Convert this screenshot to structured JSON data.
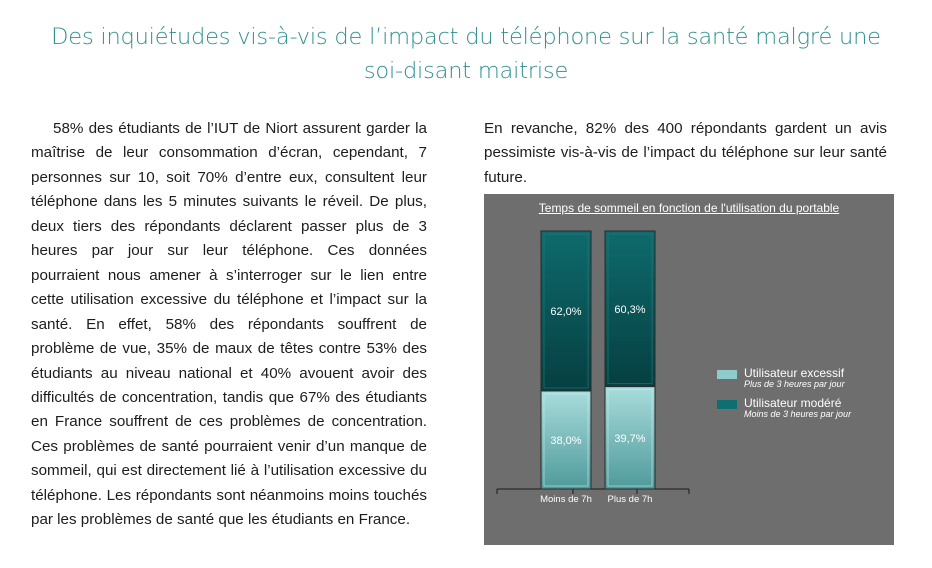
{
  "title": "Des inquiétudes vis-à-vis de l’impact du téléphone sur la santé malgré une soi-disant maitrise",
  "left_paragraph": "58% des étudiants de l’IUT de Niort assurent garder la maîtrise de leur consommation d’écran, cependant, 7 personnes sur 10, soit 70% d’entre eux, consultent leur téléphone dans les 5 minutes suivants le réveil. De plus, deux tiers des répondants déclarent passer plus de 3 heures par jour sur leur téléphone. Ces données pourraient nous amener à s’interroger sur le lien entre cette utilisation excessive du téléphone et l’impact sur la santé. En effet, 58% des répondants souffrent de problème de vue, 35% de maux de têtes contre 53% des étudiants au niveau national et 40% avouent avoir des difficultés de concentration, tandis que 67% des étudiants en France souffrent de ces problèmes de concentration. Ces problèmes de santé pourraient venir d’un manque de sommeil, qui est directement lié à l’utilisation excessive du téléphone. Les répondants sont néanmoins moins touchés par les problèmes de santé que les étudiants en France.",
  "right_paragraph": "En revanche, 82% des 400 répondants gardent un avis pessimiste vis-à-vis de l’impact du téléphone sur leur santé future.",
  "chart_data": {
    "type": "bar",
    "stacked": true,
    "percent_stacked": true,
    "title": "Temps de sommeil en fonction de l'utilisation du portable",
    "categories": [
      "Moins de 7h",
      "Plus de 7h"
    ],
    "series": [
      {
        "name": "Utilisateur excessif",
        "subtitle": "Plus de 3 heures par jour",
        "values": [
          38.0,
          39.7
        ],
        "labels": [
          "38,0%",
          "39,7%"
        ],
        "color": "#8ecbcc"
      },
      {
        "name": "Utilisateur modéré",
        "subtitle": "Moins de 3 heures par jour",
        "values": [
          62.0,
          60.3
        ],
        "labels": [
          "62,0%",
          "60,3%"
        ],
        "color": "#0e6e70"
      }
    ],
    "ylim": [
      0,
      100
    ],
    "legend": "right",
    "background": "#6e6e6e"
  }
}
